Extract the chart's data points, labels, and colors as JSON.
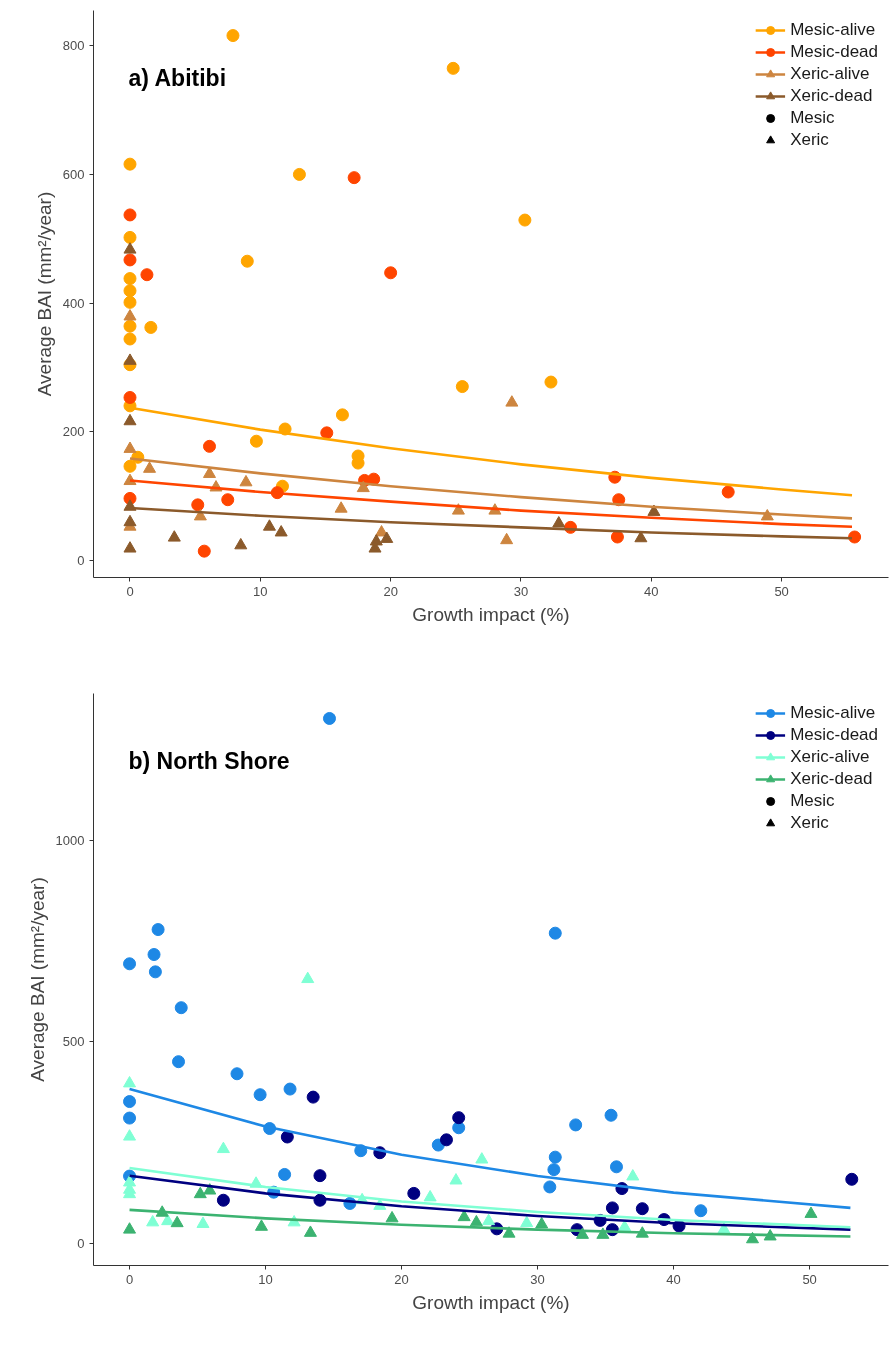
{
  "chart_data": [
    {
      "type": "scatter",
      "title": "a) Abitibi",
      "xlabel": "Growth impact (%)",
      "ylabel": "Average BAI (mm²/year)",
      "xlim": [
        -2.8,
        58.2
      ],
      "ylim": [
        -27,
        855
      ],
      "xticks": [
        0,
        10,
        20,
        30,
        40,
        50
      ],
      "yticks": [
        0,
        200,
        400,
        600,
        800
      ],
      "legend": "top right",
      "series": [
        {
          "name": "Mesic-alive",
          "color": "#ffa500",
          "marker": "circle",
          "x": [
            7.9,
            24.8,
            0,
            13.0,
            0,
            9.0,
            0,
            0,
            0,
            0,
            1.6,
            0,
            0,
            25.5,
            16.3,
            11.9,
            9.7,
            17.5,
            17.5,
            0.6,
            0,
            11.7,
            0,
            30.3,
            32.3
          ],
          "values": [
            816,
            765,
            616,
            600,
            502,
            465,
            438,
            419,
            401,
            364,
            362,
            344,
            304,
            270,
            226,
            204,
            185,
            162,
            151,
            160,
            146,
            115,
            240,
            529,
            277
          ]
        },
        {
          "name": "Mesic-dead",
          "color": "#ff4500",
          "marker": "circle",
          "x": [
            0,
            0,
            1.3,
            17.2,
            20.0,
            0,
            6.1,
            15.1,
            18.0,
            18.7,
            7.5,
            5.2,
            11.3,
            5.7,
            0,
            37.2,
            37.5,
            45.9,
            33.8,
            37.4,
            55.6
          ],
          "values": [
            537,
            467,
            444,
            595,
            447,
            253,
            177,
            198,
            124,
            126,
            94,
            86,
            105,
            14,
            96,
            129,
            94,
            106,
            51,
            36,
            36
          ]
        },
        {
          "name": "Xeric-alive",
          "color": "#cd853f",
          "marker": "triangle",
          "x": [
            0,
            0,
            1.5,
            6.1,
            8.9,
            6.6,
            5.4,
            16.2,
            17.9,
            19.3,
            0,
            0,
            29.3,
            25.2,
            28.0,
            28.9,
            48.9
          ],
          "values": [
            379,
            173,
            142,
            134,
            121,
            113,
            68,
            80,
            112,
            43,
            123,
            52,
            245,
            77,
            77,
            31,
            68
          ]
        },
        {
          "name": "Xeric-dead",
          "color": "#8b5a2b",
          "marker": "triangle",
          "x": [
            0,
            0,
            0,
            0,
            0,
            0,
            3.4,
            8.5,
            10.7,
            11.6,
            18.8,
            19.7,
            18.9,
            32.9,
            39.2,
            40.2
          ],
          "values": [
            483,
            310,
            216,
            83,
            18,
            59,
            35,
            23,
            52,
            43,
            18,
            33,
            29,
            57,
            34,
            75
          ]
        },
        {
          "type": "line",
          "color": "#ffa500",
          "x": [
            0,
            10,
            20,
            30,
            40,
            50,
            55.4
          ],
          "values": [
            237,
            203,
            174,
            149,
            128,
            110,
            101
          ]
        },
        {
          "type": "line",
          "color": "#ff4500",
          "x": [
            0,
            10,
            20,
            30,
            40,
            50,
            55.4
          ],
          "values": [
            124,
            106,
            91,
            77,
            66,
            56,
            52
          ]
        },
        {
          "type": "line",
          "color": "#cd853f",
          "x": [
            0,
            10,
            20,
            30,
            40,
            50,
            55.4
          ],
          "values": [
            158,
            135,
            115,
            98,
            83,
            71,
            65
          ]
        },
        {
          "type": "line",
          "color": "#8b5a2b",
          "x": [
            0,
            10,
            20,
            30,
            40,
            50,
            55.4
          ],
          "values": [
            81,
            69,
            59,
            51,
            43,
            37,
            34
          ]
        },
        {
          "name": "Mesic",
          "color": "#000000",
          "marker": "circle"
        },
        {
          "name": "Xeric",
          "color": "#000000",
          "marker": "triangle"
        }
      ]
    },
    {
      "type": "scatter",
      "title": "b) North Shore",
      "xlabel": "Growth impact (%)",
      "ylabel": "Average BAI (mm²/year)",
      "xlim": [
        -2.65,
        55.8
      ],
      "ylim": [
        -55,
        1365
      ],
      "xticks": [
        0,
        10,
        20,
        30,
        40,
        50
      ],
      "yticks": [
        0,
        500,
        1000
      ],
      "legend": "top right",
      "series": [
        {
          "name": "Mesic-alive",
          "color": "#1e88e5",
          "marker": "circle",
          "x": [
            14.7,
            2.1,
            1.8,
            0,
            1.9,
            3.8,
            3.6,
            7.9,
            9.6,
            11.8,
            0,
            0,
            10.3,
            11.4,
            17.0,
            22.7,
            24.2,
            16.2,
            10.6,
            0,
            31.3,
            35.4,
            32.8,
            31.3,
            31.2,
            30.9,
            35.8,
            42.0
          ],
          "values": [
            1303,
            779,
            717,
            694,
            674,
            585,
            451,
            421,
            369,
            383,
            352,
            311,
            285,
            171,
            230,
            244,
            287,
            99,
            127,
            167,
            770,
            318,
            294,
            214,
            183,
            140,
            190,
            81
          ]
        },
        {
          "name": "Mesic-dead",
          "color": "#000080",
          "marker": "circle",
          "x": [
            13.5,
            11.6,
            14.0,
            18.4,
            6.9,
            14.0,
            20.9,
            23.3,
            24.2,
            27.0,
            53.1,
            36.2,
            35.5,
            37.7,
            34.6,
            39.3,
            40.4,
            32.9,
            35.5
          ],
          "values": [
            363,
            264,
            168,
            225,
            107,
            107,
            124,
            257,
            312,
            36,
            159,
            136,
            88,
            86,
            57,
            59,
            43,
            34,
            34
          ]
        },
        {
          "name": "Xeric-alive",
          "color": "#7fffd4",
          "marker": "triangle",
          "x": [
            0,
            0,
            0,
            0,
            0,
            6.9,
            13.1,
            1.7,
            2.8,
            5.4,
            9.3,
            12.1,
            17.1,
            18.4,
            22.1,
            24.0,
            25.9,
            37.0,
            29.2,
            26.4,
            36.4,
            43.7
          ],
          "values": [
            397,
            265,
            151,
            133,
            122,
            234,
            656,
            52,
            55,
            48,
            148,
            52,
            107,
            93,
            114,
            156,
            208,
            166,
            50,
            55,
            40,
            34
          ]
        },
        {
          "name": "Xeric-dead",
          "color": "#3cb371",
          "marker": "triangle",
          "x": [
            0,
            2.4,
            3.5,
            5.2,
            5.9,
            9.7,
            13.3,
            19.3,
            24.6,
            25.5,
            27.9,
            30.3,
            33.3,
            34.8,
            37.7,
            45.8,
            47.1,
            50.1
          ],
          "values": [
            34,
            76,
            50,
            122,
            131,
            41,
            26,
            62,
            65,
            52,
            24,
            47,
            21,
            21,
            24,
            10,
            17,
            73
          ]
        },
        {
          "type": "line",
          "color": "#1e88e5",
          "x": [
            0,
            10,
            20,
            30,
            40,
            53
          ],
          "values": [
            383,
            290,
            220,
            167,
            126,
            88
          ]
        },
        {
          "type": "line",
          "color": "#000080",
          "x": [
            0,
            10,
            20,
            30,
            40,
            53
          ],
          "values": [
            168,
            124,
            92,
            68,
            50,
            34
          ]
        },
        {
          "type": "line",
          "color": "#7fffd4",
          "x": [
            0,
            10,
            20,
            30,
            40,
            53
          ],
          "values": [
            187,
            140,
            104,
            78,
            58,
            40
          ]
        },
        {
          "type": "line",
          "color": "#3cb371",
          "x": [
            0,
            10,
            20,
            30,
            40,
            53
          ],
          "values": [
            83,
            62,
            46,
            34,
            25,
            17
          ]
        },
        {
          "name": "Mesic",
          "color": "#000000",
          "marker": "circle"
        },
        {
          "name": "Xeric",
          "color": "#000000",
          "marker": "triangle"
        }
      ]
    }
  ]
}
